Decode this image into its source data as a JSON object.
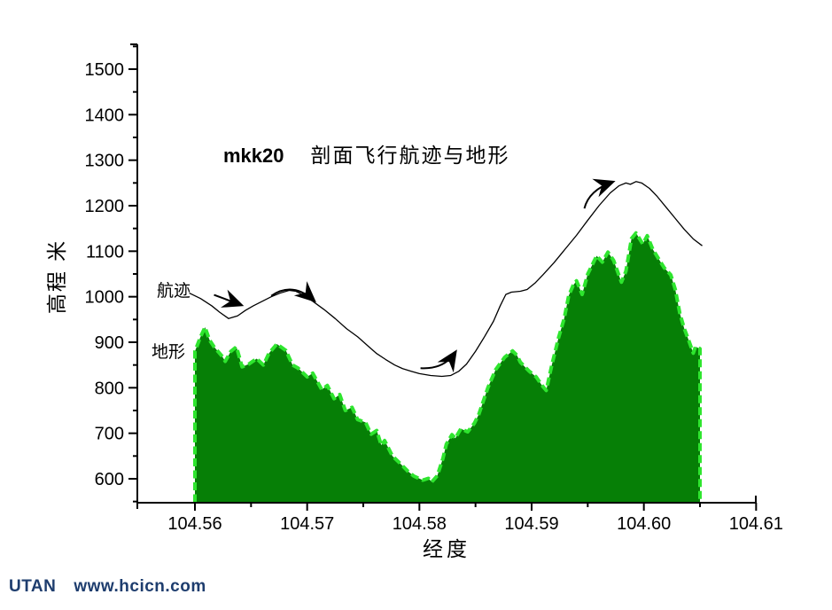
{
  "title": {
    "code": "mkk20",
    "text": "剖面飞行航迹与地形"
  },
  "annotations": {
    "trajectory_label": "航迹",
    "terrain_label": "地形"
  },
  "footer": {
    "brand": "UTAN",
    "url": "www.hcicn.com"
  },
  "colors": {
    "terrain_fill": "#067f06",
    "terrain_edge": "#2ee52e",
    "trajectory": "#000000",
    "axis": "#000000",
    "footer_text": "#1e3d6e"
  },
  "chart_data": {
    "type": "line",
    "title": "mkk20 剖面飞行航迹与地形",
    "xlabel": "经度",
    "ylabel": "高程 米",
    "xlim": [
      104.5549,
      104.61
    ],
    "ylim": [
      547,
      1554
    ],
    "grid": false,
    "x_axis": {
      "major_ticks": [
        104.56,
        104.57,
        104.58,
        104.59,
        104.6,
        104.61
      ],
      "major_tick_labels": [
        "104.56",
        "104.57",
        "104.58",
        "104.59",
        "104.60",
        "104.61"
      ],
      "minor_ticks": [
        104.565,
        104.575,
        104.585,
        104.595,
        104.605
      ]
    },
    "y_axis": {
      "major_ticks": [
        600,
        700,
        800,
        900,
        1000,
        1100,
        1200,
        1300,
        1400,
        1500
      ],
      "major_tick_labels": [
        "600",
        "700",
        "800",
        "900",
        "1000",
        "1100",
        "1200",
        "1300",
        "1400",
        "1500"
      ],
      "minor_ticks": [
        550,
        650,
        750,
        850,
        950,
        1050,
        1150,
        1250,
        1350,
        1450,
        1550
      ]
    },
    "series": [
      {
        "name": "地形",
        "type": "area",
        "data": [
          [
            104.56,
            880
          ],
          [
            104.5605,
            912
          ],
          [
            104.5609,
            933
          ],
          [
            104.5613,
            905
          ],
          [
            104.5617,
            890
          ],
          [
            104.5624,
            870
          ],
          [
            104.5627,
            858
          ],
          [
            104.5632,
            880
          ],
          [
            104.5637,
            890
          ],
          [
            104.5642,
            846
          ],
          [
            104.5648,
            852
          ],
          [
            104.5655,
            864
          ],
          [
            104.5661,
            850
          ],
          [
            104.5666,
            876
          ],
          [
            104.5673,
            896
          ],
          [
            104.5681,
            882
          ],
          [
            104.5687,
            850
          ],
          [
            104.5692,
            843
          ],
          [
            104.57,
            824
          ],
          [
            104.5705,
            832
          ],
          [
            104.5713,
            796
          ],
          [
            104.5718,
            805
          ],
          [
            104.5724,
            776
          ],
          [
            104.5729,
            785
          ],
          [
            104.5734,
            750
          ],
          [
            104.574,
            757
          ],
          [
            104.5745,
            730
          ],
          [
            104.5752,
            724
          ],
          [
            104.5757,
            698
          ],
          [
            104.5762,
            706
          ],
          [
            104.5766,
            674
          ],
          [
            104.5769,
            684
          ],
          [
            104.5776,
            650
          ],
          [
            104.5784,
            631
          ],
          [
            104.579,
            616
          ],
          [
            104.5795,
            606
          ],
          [
            104.5803,
            597
          ],
          [
            104.5808,
            601
          ],
          [
            104.5811,
            593
          ],
          [
            104.5816,
            607
          ],
          [
            104.5821,
            645
          ],
          [
            104.5824,
            676
          ],
          [
            104.5829,
            697
          ],
          [
            104.5832,
            689
          ],
          [
            104.5837,
            710
          ],
          [
            104.5843,
            703
          ],
          [
            104.5849,
            722
          ],
          [
            104.5853,
            742
          ],
          [
            104.5861,
            800
          ],
          [
            104.5868,
            840
          ],
          [
            104.5876,
            867
          ],
          [
            104.5883,
            881
          ],
          [
            104.5887,
            871
          ],
          [
            104.589,
            856
          ],
          [
            104.5894,
            846
          ],
          [
            104.5898,
            836
          ],
          [
            104.5904,
            824
          ],
          [
            104.5909,
            806
          ],
          [
            104.5913,
            794
          ],
          [
            104.5918,
            850
          ],
          [
            104.5924,
            910
          ],
          [
            104.5929,
            952
          ],
          [
            104.5933,
            1002
          ],
          [
            104.5937,
            1025
          ],
          [
            104.594,
            1035
          ],
          [
            104.5945,
            1005
          ],
          [
            104.595,
            1050
          ],
          [
            104.5958,
            1090
          ],
          [
            104.5963,
            1076
          ],
          [
            104.5968,
            1098
          ],
          [
            104.5973,
            1080
          ],
          [
            104.598,
            1032
          ],
          [
            104.5984,
            1056
          ],
          [
            104.5989,
            1128
          ],
          [
            104.5993,
            1140
          ],
          [
            104.5999,
            1116
          ],
          [
            104.6003,
            1134
          ],
          [
            104.6008,
            1104
          ],
          [
            104.6013,
            1084
          ],
          [
            104.6018,
            1064
          ],
          [
            104.6024,
            1048
          ],
          [
            104.6028,
            1016
          ],
          [
            104.6032,
            964
          ],
          [
            104.6036,
            930
          ],
          [
            104.604,
            904
          ],
          [
            104.6044,
            876
          ],
          [
            104.6046,
            890
          ],
          [
            104.605,
            886
          ]
        ]
      },
      {
        "name": "航迹",
        "type": "line",
        "data": [
          [
            104.5595,
            1008
          ],
          [
            104.5605,
            996
          ],
          [
            104.5615,
            980
          ],
          [
            104.5622,
            966
          ],
          [
            104.563,
            952
          ],
          [
            104.5638,
            958
          ],
          [
            104.5645,
            970
          ],
          [
            104.5652,
            980
          ],
          [
            104.566,
            990
          ],
          [
            104.5668,
            1000
          ],
          [
            104.5676,
            1008
          ],
          [
            104.5684,
            1014
          ],
          [
            104.569,
            1012
          ],
          [
            104.5696,
            1004
          ],
          [
            104.5705,
            990
          ],
          [
            104.5715,
            972
          ],
          [
            104.5725,
            952
          ],
          [
            104.5735,
            930
          ],
          [
            104.5745,
            912
          ],
          [
            104.5755,
            890
          ],
          [
            104.5762,
            875
          ],
          [
            104.577,
            862
          ],
          [
            104.5778,
            850
          ],
          [
            104.5785,
            842
          ],
          [
            104.5793,
            836
          ],
          [
            104.58,
            831
          ],
          [
            104.581,
            827
          ],
          [
            104.582,
            825
          ],
          [
            104.5828,
            827
          ],
          [
            104.5835,
            836
          ],
          [
            104.5842,
            852
          ],
          [
            104.585,
            880
          ],
          [
            104.5858,
            912
          ],
          [
            104.5866,
            946
          ],
          [
            104.5872,
            980
          ],
          [
            104.5877,
            1005
          ],
          [
            104.5882,
            1010
          ],
          [
            104.589,
            1012
          ],
          [
            104.5896,
            1016
          ],
          [
            104.5903,
            1030
          ],
          [
            104.591,
            1048
          ],
          [
            104.592,
            1075
          ],
          [
            104.593,
            1105
          ],
          [
            104.594,
            1135
          ],
          [
            104.595,
            1168
          ],
          [
            104.596,
            1200
          ],
          [
            104.597,
            1228
          ],
          [
            104.5978,
            1244
          ],
          [
            104.5984,
            1250
          ],
          [
            104.5988,
            1247
          ],
          [
            104.5993,
            1253
          ],
          [
            104.5998,
            1250
          ],
          [
            104.6005,
            1238
          ],
          [
            104.6012,
            1220
          ],
          [
            104.602,
            1196
          ],
          [
            104.6028,
            1172
          ],
          [
            104.6036,
            1148
          ],
          [
            104.6044,
            1127
          ],
          [
            104.6052,
            1112
          ]
        ]
      }
    ],
    "arrows": [
      {
        "kind": "straight",
        "from": [
          104.5617,
          1004
        ],
        "to": [
          104.5641,
          982
        ]
      },
      {
        "kind": "curve",
        "from": [
          104.5668,
          1002
        ],
        "mid": [
          104.5687,
          1034
        ],
        "to": [
          104.5706,
          992
        ]
      },
      {
        "kind": "curve",
        "from": [
          104.5801,
          843
        ],
        "mid": [
          104.5822,
          840
        ],
        "to": [
          104.5832,
          878
        ]
      },
      {
        "kind": "curve",
        "from": [
          104.5947,
          1194
        ],
        "mid": [
          104.5951,
          1234
        ],
        "to": [
          104.5972,
          1252
        ]
      }
    ]
  }
}
